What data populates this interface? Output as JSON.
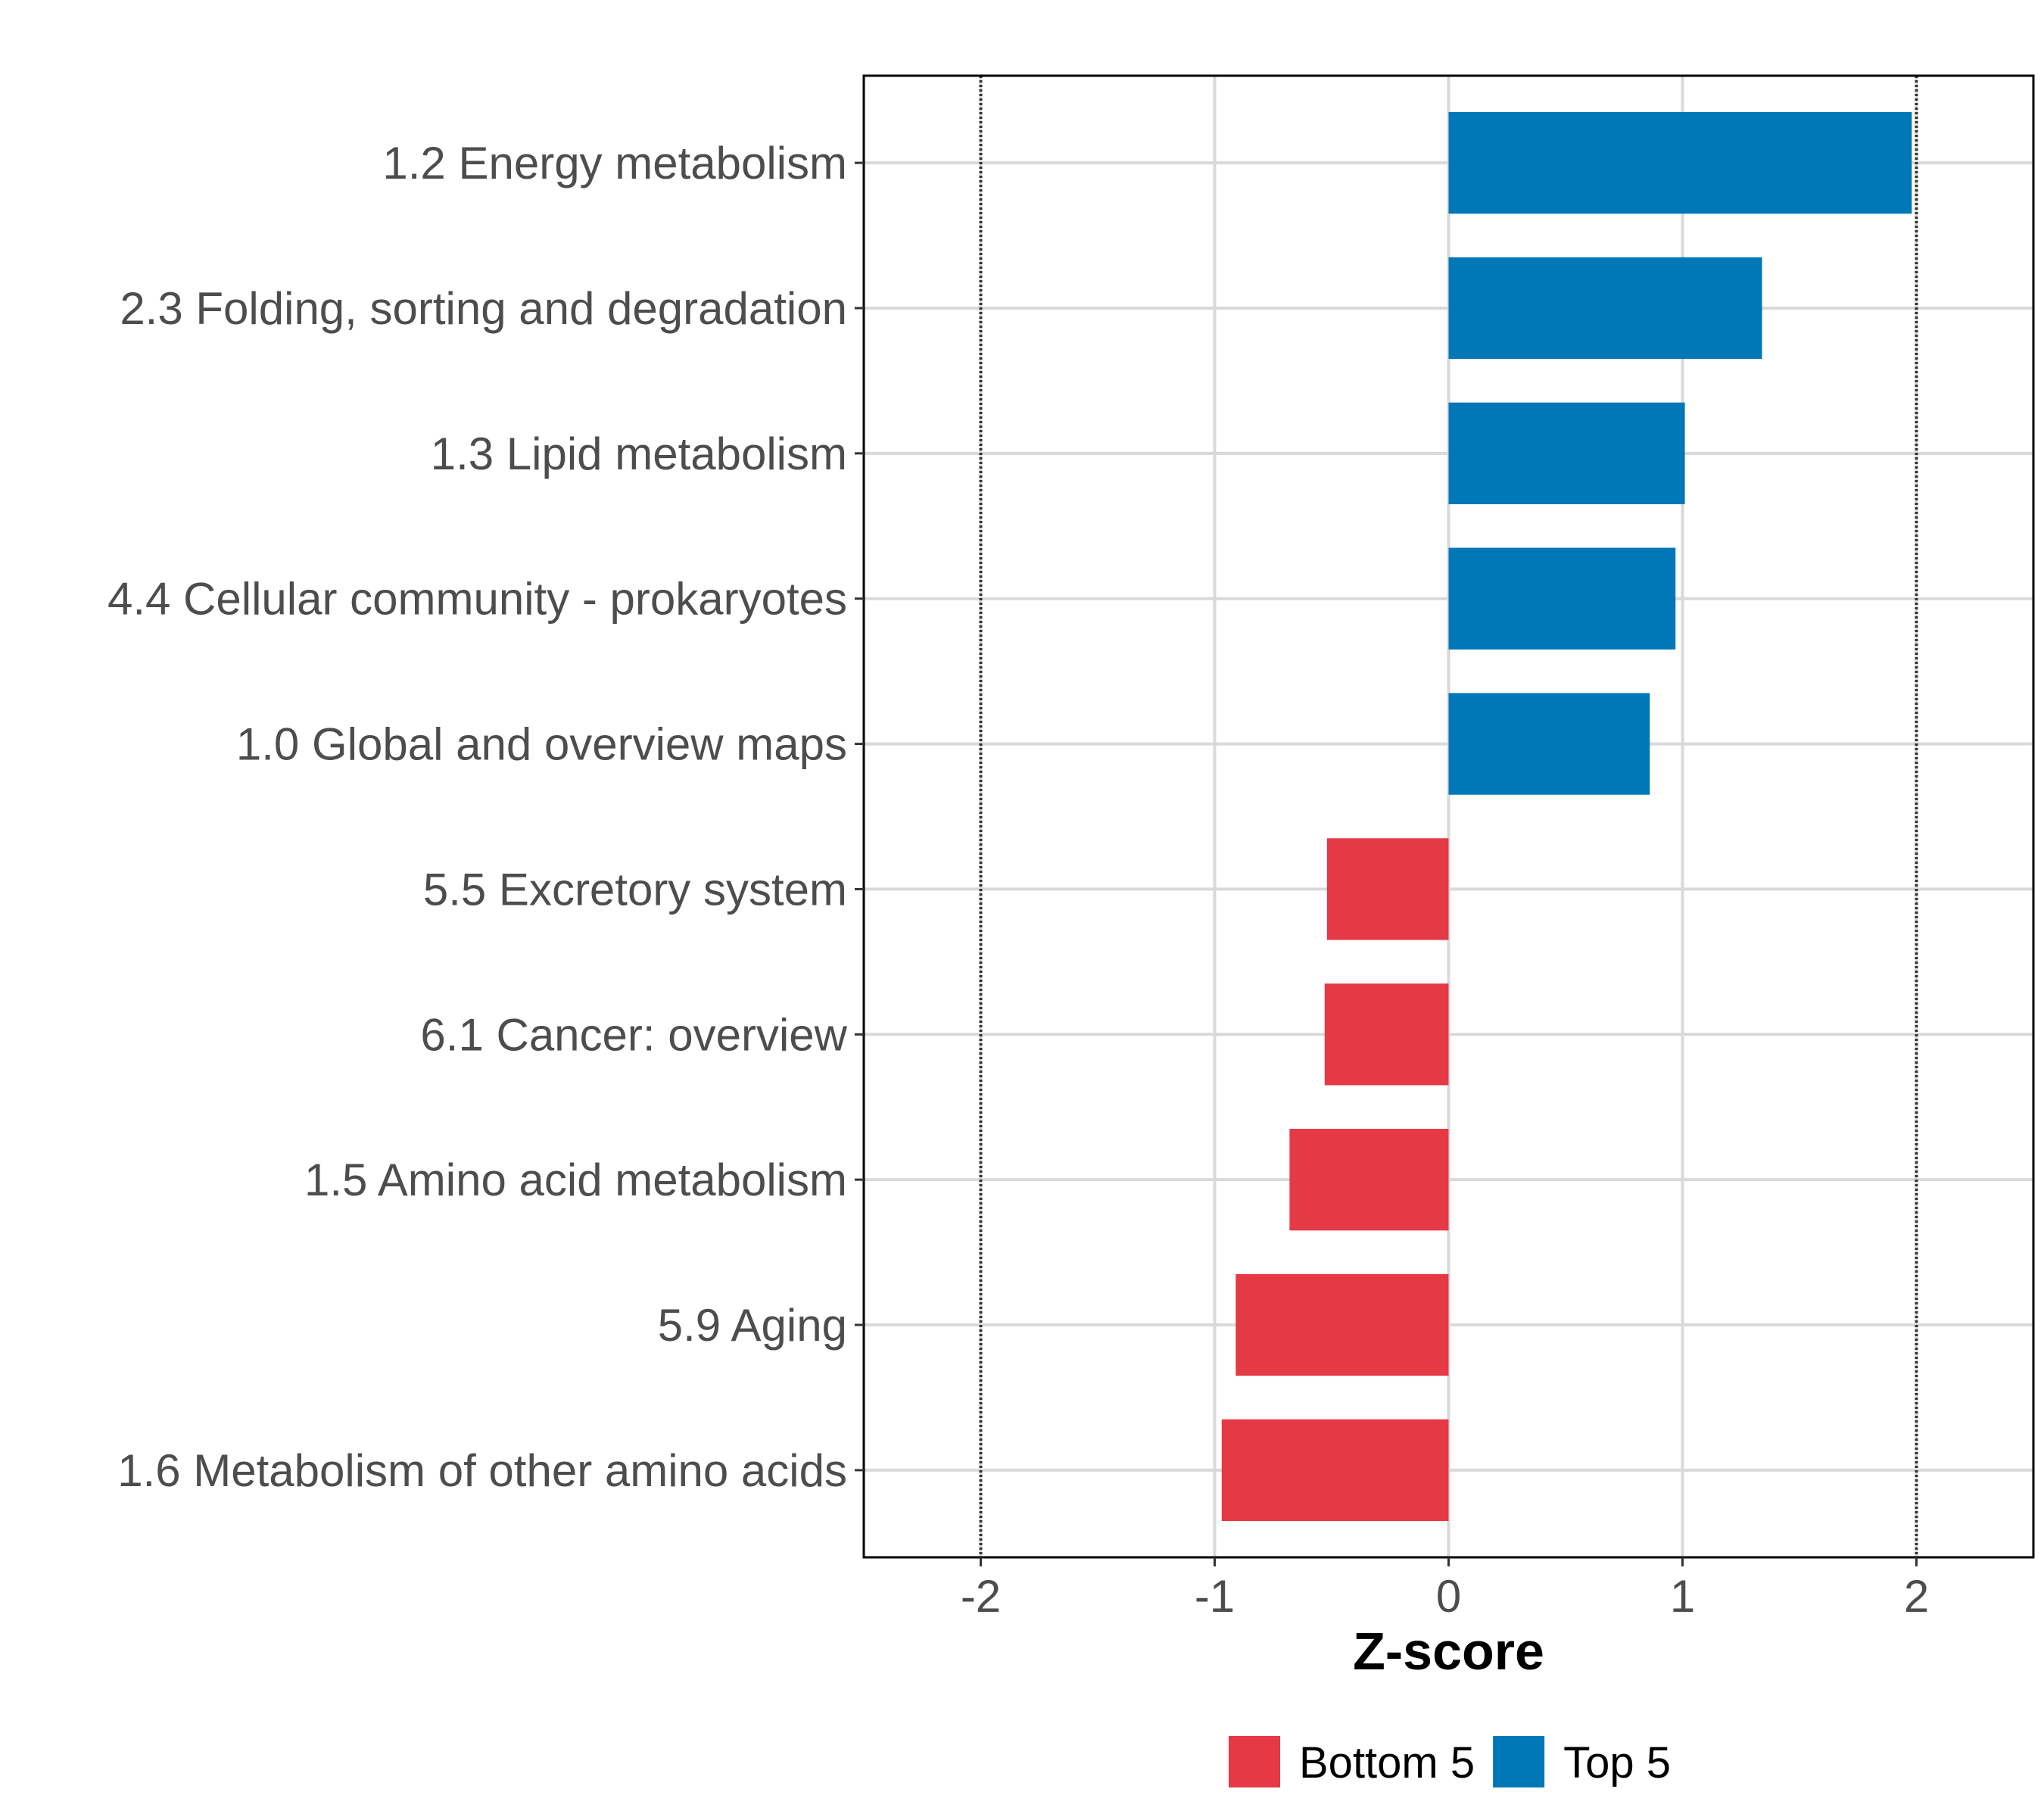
{
  "chart_data": {
    "type": "bar",
    "orientation": "horizontal",
    "title": "",
    "xlabel": "Z-score",
    "ylabel": "",
    "xlim": [
      -2.5,
      2.5
    ],
    "x_ticks": [
      -2,
      -1,
      0,
      1,
      2
    ],
    "x_tick_labels": [
      "-2",
      "-1",
      "0",
      "1",
      "2"
    ],
    "reference_lines": [
      -2,
      2
    ],
    "grid": true,
    "categories": [
      "1.2 Energy metabolism",
      "2.3 Folding, sorting and degradation",
      "1.3 Lipid metabolism",
      "4.4 Cellular community - prokaryotes",
      "1.0 Global and overview maps",
      "5.5 Excretory system",
      "6.1 Cancer: overview",
      "1.5 Amino acid metabolism",
      "5.9 Aging",
      "1.6 Metabolism of other amino acids"
    ],
    "values": [
      1.98,
      1.34,
      1.01,
      0.97,
      0.86,
      -0.52,
      -0.53,
      -0.68,
      -0.91,
      -0.97
    ],
    "groups": [
      "Top 5",
      "Top 5",
      "Top 5",
      "Top 5",
      "Top 5",
      "Bottom 5",
      "Bottom 5",
      "Bottom 5",
      "Bottom 5",
      "Bottom 5"
    ],
    "legend": [
      {
        "name": "Bottom 5",
        "color": "#e63946"
      },
      {
        "name": "Top 5",
        "color": "#0077b6"
      }
    ],
    "legend_position": "bottom"
  }
}
